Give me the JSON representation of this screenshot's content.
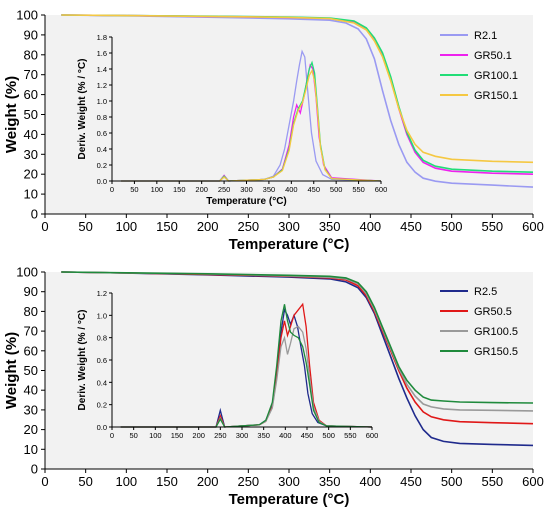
{
  "chart_data": [
    {
      "type": "line",
      "xlabel": "Temperature (°C)",
      "ylabel": "Weight (%)",
      "xlim": [
        0,
        600
      ],
      "ylim": [
        0,
        100
      ],
      "xticks": [
        0,
        50,
        100,
        150,
        200,
        250,
        300,
        350,
        400,
        450,
        500,
        550,
        600
      ],
      "yticks": [
        0,
        10,
        20,
        30,
        40,
        50,
        60,
        70,
        80,
        90,
        100
      ],
      "legend_position": "top-right",
      "series": [
        {
          "name": "R2.1",
          "color": "#9a9af2",
          "x": [
            20,
            100,
            200,
            300,
            350,
            370,
            385,
            395,
            405,
            415,
            425,
            435,
            445,
            455,
            465,
            480,
            500,
            550,
            600
          ],
          "y": [
            100,
            99.6,
            98.9,
            98.1,
            97.4,
            96,
            93,
            88,
            78,
            62,
            47,
            35,
            26,
            21,
            18,
            16.5,
            15.5,
            14.5,
            13.5
          ]
        },
        {
          "name": "GR50.1",
          "color": "#ee22ee",
          "x": [
            20,
            100,
            200,
            300,
            350,
            380,
            395,
            405,
            415,
            425,
            435,
            445,
            455,
            465,
            480,
            500,
            550,
            600
          ],
          "y": [
            100,
            99.7,
            99.3,
            98.8,
            98.3,
            96.5,
            93,
            88,
            80,
            68,
            53,
            40,
            31,
            26,
            23,
            21.5,
            20.5,
            20
          ]
        },
        {
          "name": "GR100.1",
          "color": "#22dd77",
          "x": [
            20,
            100,
            200,
            300,
            350,
            380,
            395,
            405,
            415,
            425,
            435,
            445,
            455,
            465,
            480,
            500,
            550,
            600
          ],
          "y": [
            100,
            99.7,
            99.4,
            99,
            98.5,
            97,
            93.5,
            88.5,
            81,
            69,
            54,
            41,
            32,
            27,
            24,
            22.5,
            21.5,
            21
          ]
        },
        {
          "name": "GR150.1",
          "color": "#f5c842",
          "x": [
            20,
            100,
            200,
            300,
            350,
            380,
            395,
            405,
            415,
            425,
            435,
            445,
            455,
            465,
            480,
            500,
            550,
            600
          ],
          "y": [
            100,
            99.7,
            99.3,
            98.8,
            98.2,
            96,
            92.5,
            87,
            79,
            67,
            53,
            42,
            35,
            31,
            29,
            27.5,
            26.5,
            26
          ]
        }
      ],
      "inset": {
        "xlabel": "Temperature (°C)",
        "ylabel": "Deriv. Weight (% / °C)",
        "xlim": [
          0,
          600
        ],
        "ylim": [
          0,
          1.8
        ],
        "xticks": [
          0,
          50,
          100,
          150,
          200,
          250,
          300,
          350,
          400,
          450,
          500,
          550,
          600
        ],
        "yticks": [
          0.0,
          0.2,
          0.4,
          0.6,
          0.8,
          1.0,
          1.2,
          1.4,
          1.6,
          1.8
        ],
        "series": [
          {
            "name": "R2.1",
            "color": "#9a9af2",
            "x": [
              20,
              240,
              250,
              260,
              340,
              360,
              375,
              385,
              395,
              405,
              412,
              418,
              424,
              430,
              437,
              445,
              455,
              470,
              490,
              600
            ],
            "y": [
              0,
              0,
              0.05,
              0,
              0.02,
              0.06,
              0.2,
              0.4,
              0.7,
              1.0,
              1.25,
              1.45,
              1.62,
              1.55,
              1.1,
              0.6,
              0.25,
              0.08,
              0.02,
              0
            ]
          },
          {
            "name": "GR50.1",
            "color": "#ee22ee",
            "x": [
              20,
              240,
              250,
              260,
              340,
              360,
              380,
              395,
              405,
              412,
              420,
              428,
              436,
              442,
              448,
              455,
              462,
              472,
              490,
              600
            ],
            "y": [
              0,
              0,
              0.07,
              0,
              0.02,
              0.05,
              0.15,
              0.45,
              0.8,
              0.95,
              0.85,
              1.05,
              1.3,
              1.45,
              1.4,
              1.05,
              0.55,
              0.2,
              0.04,
              0
            ]
          },
          {
            "name": "GR100.1",
            "color": "#22dd77",
            "x": [
              20,
              240,
              250,
              260,
              340,
              360,
              380,
              395,
              405,
              415,
              425,
              433,
              440,
              446,
              452,
              458,
              465,
              475,
              490,
              600
            ],
            "y": [
              0,
              0,
              0.06,
              0,
              0.02,
              0.05,
              0.14,
              0.4,
              0.72,
              0.9,
              1.0,
              1.2,
              1.4,
              1.48,
              1.35,
              0.95,
              0.45,
              0.15,
              0.03,
              0
            ]
          },
          {
            "name": "GR150.1",
            "color": "#f5c842",
            "x": [
              20,
              240,
              250,
              260,
              340,
              360,
              380,
              395,
              405,
              415,
              425,
              433,
              440,
              446,
              452,
              458,
              465,
              475,
              490,
              600
            ],
            "y": [
              0,
              0,
              0.05,
              0,
              0.02,
              0.05,
              0.13,
              0.38,
              0.7,
              0.88,
              0.98,
              1.15,
              1.32,
              1.38,
              1.25,
              0.9,
              0.42,
              0.14,
              0.03,
              0
            ]
          }
        ]
      }
    },
    {
      "type": "line",
      "xlabel": "Temperature (°C)",
      "ylabel": "Weight (%)",
      "xlim": [
        0,
        600
      ],
      "ylim": [
        0,
        100
      ],
      "xticks": [
        0,
        50,
        100,
        150,
        200,
        250,
        300,
        350,
        400,
        450,
        500,
        550,
        600
      ],
      "yticks": [
        0,
        10,
        20,
        30,
        40,
        50,
        60,
        70,
        80,
        90,
        100
      ],
      "legend_position": "top-right",
      "series": [
        {
          "name": "R2.5",
          "color": "#1f2a8c",
          "x": [
            20,
            100,
            200,
            300,
            350,
            370,
            385,
            395,
            405,
            415,
            425,
            435,
            445,
            455,
            465,
            475,
            490,
            510,
            550,
            600
          ],
          "y": [
            100,
            99.5,
            98.6,
            97.4,
            96.5,
            95,
            92,
            87,
            79,
            68,
            57,
            46,
            36,
            27,
            20,
            16,
            14,
            13,
            12.5,
            12
          ]
        },
        {
          "name": "GR50.5",
          "color": "#e01818",
          "x": [
            20,
            100,
            200,
            300,
            350,
            370,
            385,
            395,
            405,
            415,
            425,
            435,
            445,
            455,
            465,
            475,
            490,
            510,
            550,
            600
          ],
          "y": [
            100,
            99.5,
            98.8,
            97.8,
            97,
            96,
            93,
            88,
            80,
            70,
            60,
            50,
            41,
            34,
            29,
            26.5,
            25,
            24,
            23.5,
            23
          ]
        },
        {
          "name": "GR100.5",
          "color": "#9a9a9a",
          "x": [
            20,
            100,
            200,
            300,
            350,
            370,
            385,
            395,
            405,
            415,
            425,
            435,
            445,
            455,
            465,
            475,
            490,
            510,
            550,
            600
          ],
          "y": [
            100,
            99.5,
            99,
            98,
            97.3,
            96.5,
            94,
            89,
            81,
            71,
            61,
            51,
            43,
            37,
            33,
            31.5,
            30.5,
            30,
            29.8,
            29.5
          ]
        },
        {
          "name": "GR150.5",
          "color": "#1f8a3c",
          "x": [
            20,
            100,
            200,
            300,
            350,
            370,
            385,
            395,
            405,
            415,
            425,
            435,
            445,
            455,
            465,
            475,
            490,
            510,
            550,
            600
          ],
          "y": [
            100,
            99.6,
            99.1,
            98.3,
            97.8,
            97,
            94.5,
            90,
            82,
            72,
            62,
            52,
            45,
            40,
            36.5,
            35,
            34.5,
            34,
            33.7,
            33.5
          ]
        }
      ],
      "inset": {
        "xlabel": "",
        "ylabel": "Deriv. Weight (% / °C)",
        "xlim": [
          0,
          600
        ],
        "ylim": [
          0,
          1.2
        ],
        "xticks": [
          0,
          50,
          100,
          150,
          200,
          250,
          300,
          350,
          400,
          450,
          500,
          550,
          600
        ],
        "yticks": [
          0.0,
          0.2,
          0.4,
          0.6,
          0.8,
          1.0,
          1.2
        ],
        "series": [
          {
            "name": "R2.5",
            "color": "#1f2a8c",
            "x": [
              20,
              240,
              250,
              260,
              340,
              355,
              370,
              380,
              390,
              398,
              405,
              412,
              420,
              428,
              436,
              444,
              452,
              462,
              475,
              495,
              600
            ],
            "y": [
              0,
              0,
              0.15,
              0,
              0.02,
              0.06,
              0.2,
              0.5,
              0.85,
              1.05,
              1.0,
              0.92,
              1.0,
              0.9,
              0.72,
              0.55,
              0.3,
              0.12,
              0.04,
              0.01,
              0
            ]
          },
          {
            "name": "GR50.5",
            "color": "#e01818",
            "x": [
              20,
              240,
              250,
              260,
              340,
              355,
              370,
              380,
              390,
              398,
              405,
              412,
              420,
              430,
              440,
              448,
              456,
              465,
              478,
              495,
              600
            ],
            "y": [
              0,
              0,
              0.1,
              0,
              0.02,
              0.05,
              0.18,
              0.45,
              0.8,
              0.95,
              0.82,
              0.9,
              1.0,
              1.05,
              1.1,
              0.9,
              0.55,
              0.22,
              0.06,
              0.01,
              0
            ]
          },
          {
            "name": "GR100.5",
            "color": "#9a9a9a",
            "x": [
              20,
              240,
              250,
              260,
              340,
              355,
              370,
              380,
              390,
              398,
              405,
              412,
              420,
              430,
              440,
              448,
              456,
              465,
              478,
              495,
              600
            ],
            "y": [
              0,
              0,
              0.08,
              0,
              0.02,
              0.05,
              0.17,
              0.42,
              0.72,
              0.8,
              0.65,
              0.75,
              0.88,
              0.9,
              0.85,
              0.7,
              0.45,
              0.18,
              0.05,
              0.01,
              0
            ]
          },
          {
            "name": "GR150.5",
            "color": "#1f8a3c",
            "x": [
              20,
              240,
              250,
              260,
              340,
              355,
              370,
              380,
              390,
              398,
              405,
              412,
              420,
              430,
              440,
              448,
              456,
              465,
              478,
              495,
              600
            ],
            "y": [
              0,
              0,
              0.07,
              0,
              0.02,
              0.06,
              0.22,
              0.55,
              0.95,
              1.1,
              0.95,
              0.85,
              0.82,
              0.8,
              0.72,
              0.58,
              0.38,
              0.15,
              0.04,
              0.01,
              0
            ]
          }
        ]
      }
    }
  ]
}
